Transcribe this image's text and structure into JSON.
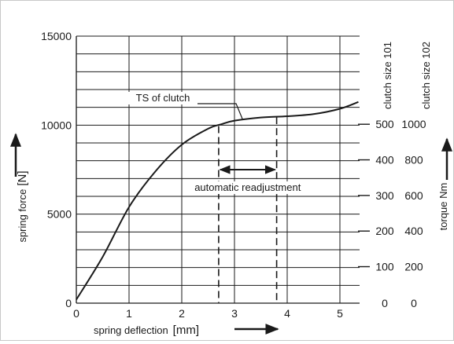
{
  "chart_data": {
    "type": "line",
    "xlabel": "spring deflection",
    "xunit": "[mm]",
    "ylabel": "spring force",
    "yunit": "[N]",
    "right_axis_label": "torque Nm",
    "xlim": [
      0,
      5.4
    ],
    "ylim": [
      0,
      15000
    ],
    "x_ticks": [
      "0",
      "1",
      "2",
      "3",
      "4",
      "5"
    ],
    "y_ticks": [
      "0",
      "5000",
      "10000",
      "15000"
    ],
    "grid": true,
    "series": [
      {
        "x": [
          0,
          0.5,
          1,
          1.5,
          2,
          2.5,
          2.75,
          3,
          3.5,
          4,
          4.5,
          5,
          5.35
        ],
        "y": [
          200,
          2600,
          5400,
          7400,
          8900,
          9800,
          10050,
          10250,
          10430,
          10500,
          10620,
          10920,
          11300
        ]
      }
    ],
    "secondary_axes": [
      {
        "title": "clutch size 101",
        "ticks": [
          {
            "label": "0",
            "force": 0
          },
          {
            "label": "100",
            "force": 2050
          },
          {
            "label": "200",
            "force": 4050
          },
          {
            "label": "300",
            "force": 6050
          },
          {
            "label": "400",
            "force": 8050
          },
          {
            "label": "500",
            "force": 10050
          }
        ]
      },
      {
        "title": "clutch size 102",
        "ticks": [
          {
            "label": "0",
            "force": 0
          },
          {
            "label": "200",
            "force": 2050
          },
          {
            "label": "400",
            "force": 4050
          },
          {
            "label": "600",
            "force": 6050
          },
          {
            "label": "800",
            "force": 8050
          },
          {
            "label": "1000",
            "force": 10050
          }
        ]
      }
    ],
    "annotations": {
      "ts_label": "TS of clutch",
      "ts_point": {
        "x": 3.15,
        "y": 10350
      },
      "readjust_label": "automatic readjustment",
      "readjust_range": [
        2.7,
        3.8
      ],
      "readjust_arrow_y": 7500
    }
  }
}
